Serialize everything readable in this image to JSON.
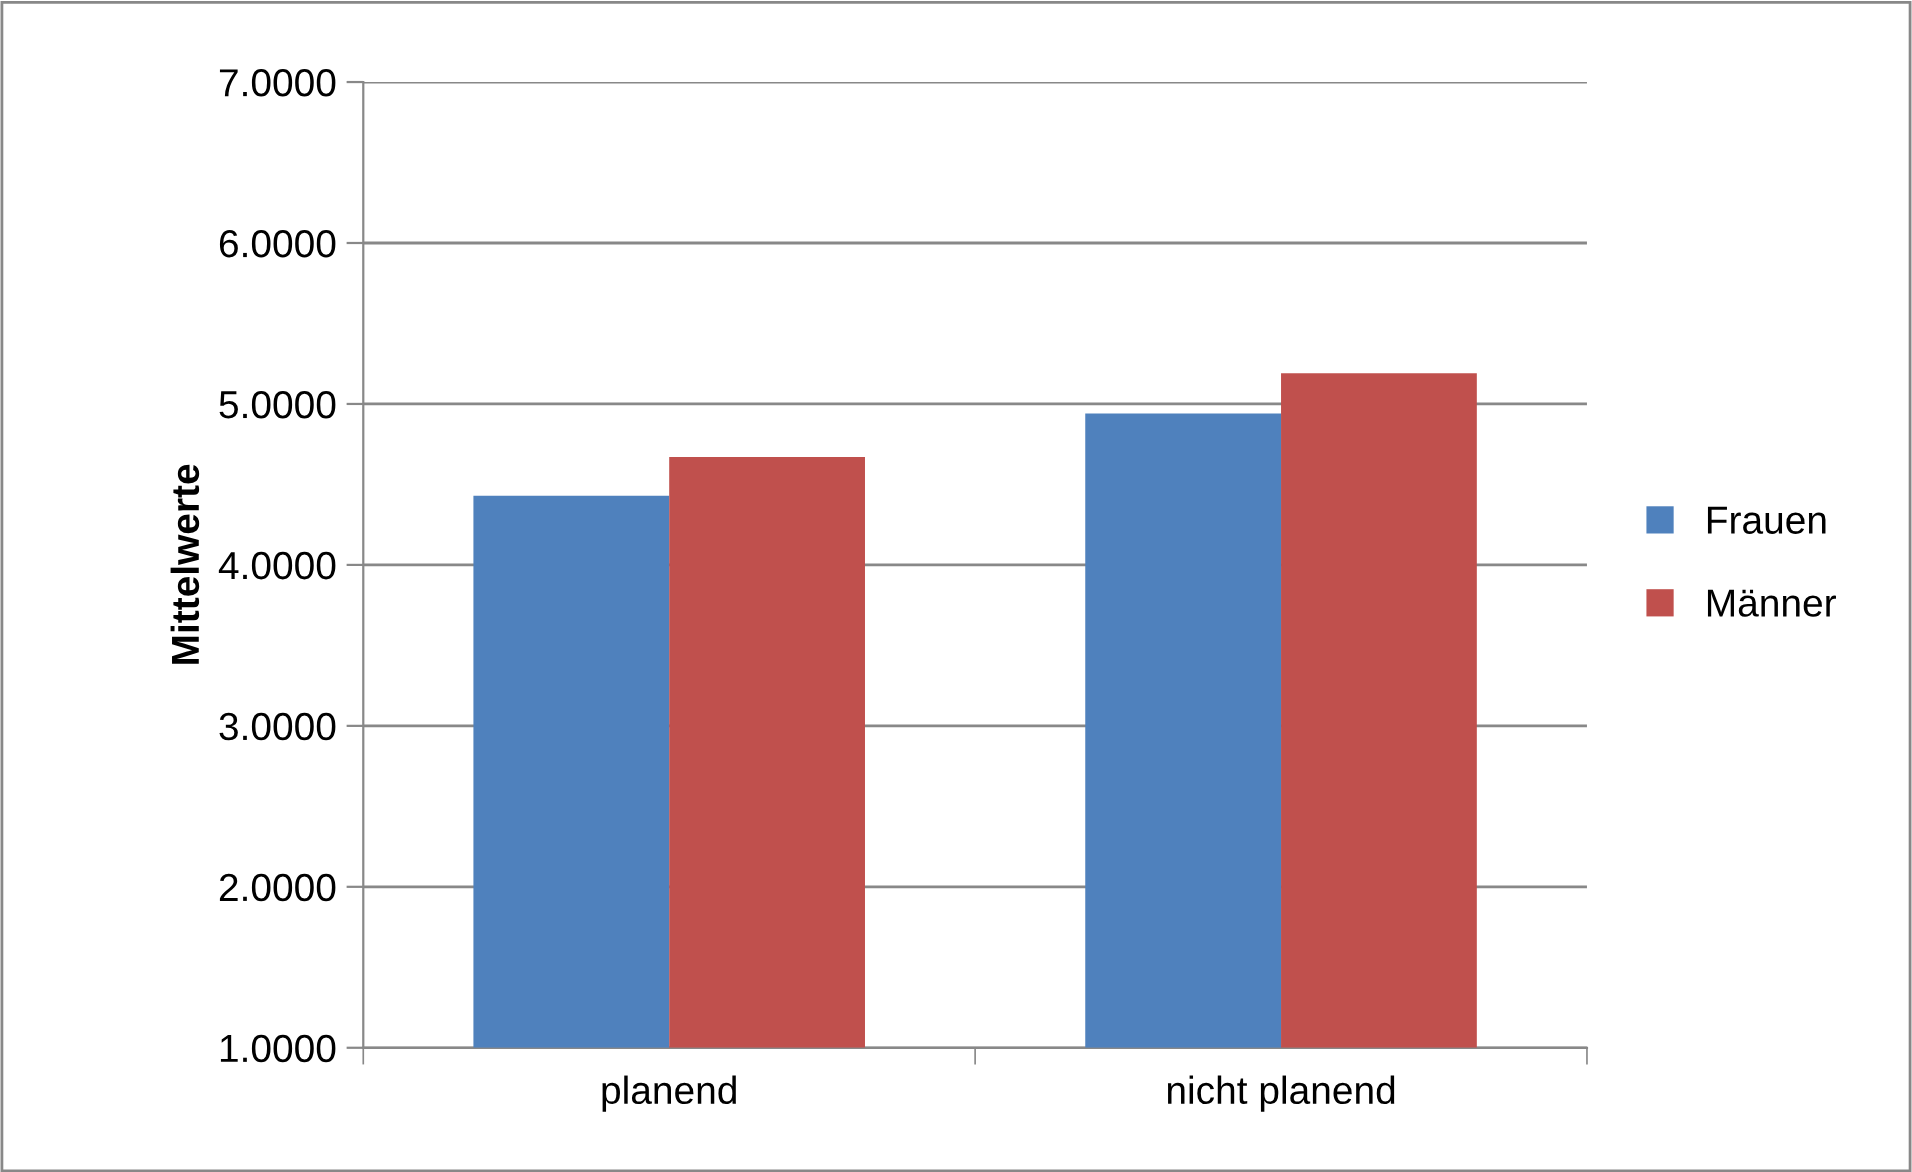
{
  "chart_data": {
    "type": "bar",
    "ylabel": "Mittelwerte",
    "categories": [
      "planend",
      "nicht planend"
    ],
    "series": [
      {
        "name": "Frauen",
        "color": "#4f81bd",
        "values": [
          4.43,
          4.94
        ]
      },
      {
        "name": "Männer",
        "color": "#c0504d",
        "values": [
          4.67,
          5.19
        ]
      }
    ],
    "ylim": [
      1,
      7
    ],
    "yticks": [
      {
        "value": 1,
        "label": "1.0000"
      },
      {
        "value": 2,
        "label": "2.0000"
      },
      {
        "value": 3,
        "label": "3.0000"
      },
      {
        "value": 4,
        "label": "4.0000"
      },
      {
        "value": 5,
        "label": "5.0000"
      },
      {
        "value": 6,
        "label": "6.0000"
      },
      {
        "value": 7,
        "label": "7.0000"
      }
    ],
    "grid": "y",
    "legend": "right"
  }
}
